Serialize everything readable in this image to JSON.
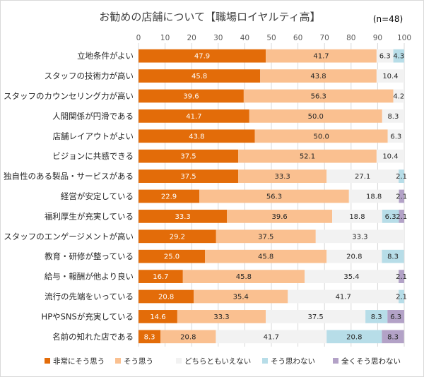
{
  "chart_data": {
    "type": "stacked-bar-horizontal",
    "title": "お勧めの店舗について【職場ロイヤルティ高】",
    "sample_note": "(n=48)",
    "x_ticks": [
      "0",
      "10",
      "20",
      "30",
      "40",
      "50",
      "60",
      "70",
      "80",
      "90",
      "100"
    ],
    "xlim": [
      0,
      100
    ],
    "grid": true,
    "legend_position": "bottom",
    "categories": [
      "立地条件がよい",
      "スタッフの技術力が高い",
      "スタッフのカウンセリング力が高い",
      "人間関係が円滑である",
      "店舗レイアウトがよい",
      "ビジョンに共感できる",
      "独自性のある製品・サービスがある",
      "経営が安定している",
      "福利厚生が充実している",
      "スタッフのエンゲージメントが高い",
      "教育・研修が整っている",
      "給与・報酬が他より良い",
      "流行の先端をいっている",
      "HPやSNSが充実している",
      "名前の知れた店である"
    ],
    "series": [
      {
        "name": "非常にそう思う",
        "color": "#e36c09",
        "label_color": "#ffffff",
        "values": [
          47.9,
          45.8,
          39.6,
          41.7,
          43.8,
          37.5,
          37.5,
          22.9,
          33.3,
          29.2,
          25.0,
          16.7,
          20.8,
          14.6,
          8.3
        ],
        "labels": [
          "47.9",
          "45.8",
          "39.6",
          "41.7",
          "43.8",
          "37.5",
          "37.5",
          "22.9",
          "33.3",
          "29.2",
          "25.0",
          "16.7",
          "20.8",
          "14.6",
          "8.3"
        ]
      },
      {
        "name": "そう思う",
        "color": "#fac090",
        "label_color": "#262626",
        "values": [
          41.7,
          43.8,
          56.3,
          50.0,
          50.0,
          52.1,
          33.3,
          56.3,
          39.6,
          37.5,
          45.8,
          45.8,
          35.4,
          33.3,
          20.8
        ],
        "labels": [
          "41.7",
          "43.8",
          "56.3",
          "50.0",
          "50.0",
          "52.1",
          "33.3",
          "56.3",
          "39.6",
          "37.5",
          "45.8",
          "45.8",
          "35.4",
          "33.3",
          "20.8"
        ]
      },
      {
        "name": "どちらともいえない",
        "color": "#f2f2f2",
        "label_color": "#262626",
        "values": [
          6.3,
          10.4,
          4.2,
          8.3,
          6.3,
          10.4,
          27.1,
          18.8,
          18.8,
          33.3,
          20.8,
          35.4,
          41.7,
          37.5,
          41.7
        ],
        "labels": [
          "6.3",
          "10.4",
          "4.2",
          "8.3",
          "6.3",
          "10.4",
          "27.1",
          "18.8",
          "18.8",
          "33.3",
          "20.8",
          "35.4",
          "41.7",
          "37.5",
          "41.7"
        ]
      },
      {
        "name": "そう思わない",
        "color": "#b7dde8",
        "label_color": "#262626",
        "values": [
          4.3,
          0,
          0,
          0,
          0,
          0,
          2.1,
          0,
          6.3,
          0,
          8.3,
          0,
          2.1,
          8.3,
          20.8
        ],
        "labels": [
          "4.3",
          "",
          "",
          "",
          "",
          "",
          "2.1",
          "",
          "6.3",
          "",
          "8.3",
          "",
          "2.1",
          "8.3",
          "20.8"
        ]
      },
      {
        "name": "全くそう思わない",
        "color": "#b3a2c7",
        "label_color": "#262626",
        "values": [
          0,
          0,
          0,
          0,
          0,
          0,
          0,
          2.1,
          2.1,
          0,
          0,
          2.1,
          0,
          6.3,
          8.3
        ],
        "labels": [
          "",
          "",
          "",
          "",
          "",
          "",
          "",
          "2.1",
          "2.1",
          "",
          "",
          "2.1",
          "",
          "6.3",
          "8.3"
        ]
      }
    ]
  }
}
